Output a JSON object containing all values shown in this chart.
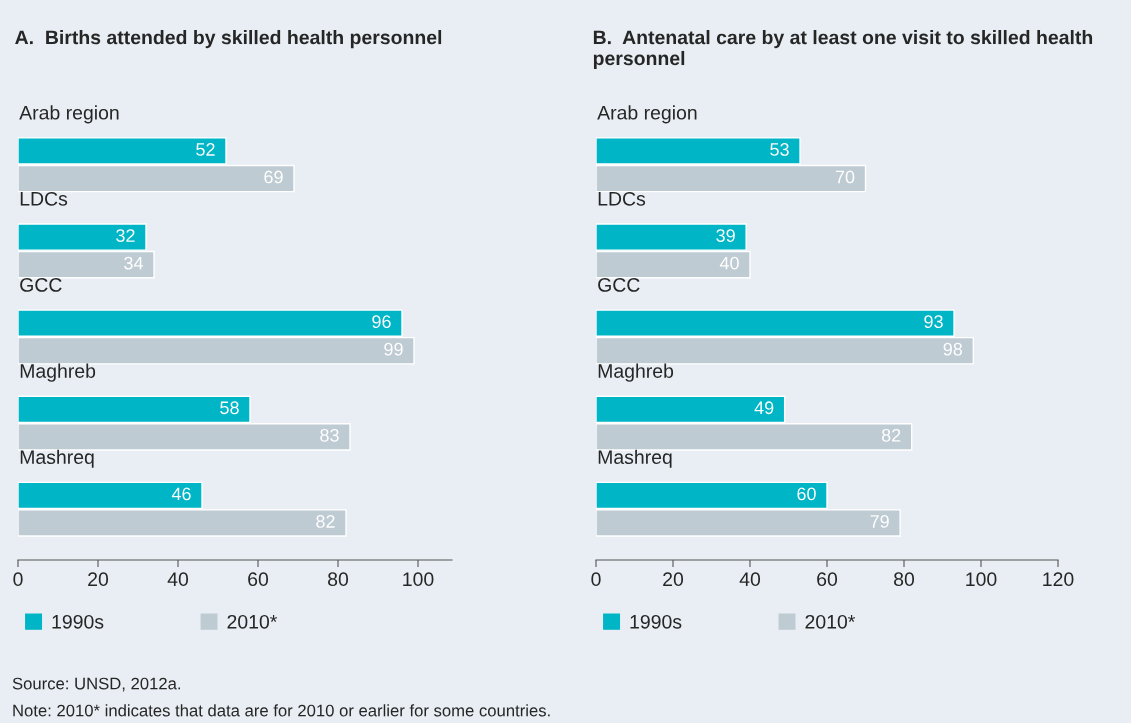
{
  "chart_data": [
    {
      "type": "bar",
      "orientation": "horizontal",
      "title": "A.  Births attended by skilled health personnel",
      "categories": [
        "Arab region",
        "LDCs",
        "GCC",
        "Maghreb",
        "Mashreq"
      ],
      "series": [
        {
          "name": "1990s",
          "color": "#00b5c5",
          "values": [
            52,
            32,
            96,
            58,
            46
          ]
        },
        {
          "name": "2010*",
          "color": "#bfcbd3",
          "values": [
            69,
            34,
            99,
            83,
            82
          ]
        }
      ],
      "xlim": [
        0,
        108.5
      ],
      "xticks": [
        0,
        20,
        40,
        60,
        80,
        100
      ],
      "data_labels": true,
      "grid": false,
      "legend": "bottom",
      "annotations": [
        "Source: UNSD, 2012a.",
        "Note: 2010* indicates that data are for 2010 or earlier for some countries."
      ]
    },
    {
      "type": "bar",
      "orientation": "horizontal",
      "title": "B.  Antenatal care by at least one visit to skilled health personnel",
      "categories": [
        "Arab region",
        "LDCs",
        "GCC",
        "Maghreb",
        "Mashreq"
      ],
      "series": [
        {
          "name": "1990s",
          "color": "#00b5c5",
          "values": [
            53,
            39,
            93,
            49,
            60
          ]
        },
        {
          "name": "2010*",
          "color": "#bfcbd3",
          "values": [
            70,
            40,
            98,
            82,
            79
          ]
        }
      ],
      "xlim": [
        0,
        120
      ],
      "xticks": [
        0,
        20,
        40,
        60,
        80,
        100,
        120
      ],
      "data_labels": true,
      "grid": false,
      "legend": "bottom"
    }
  ]
}
